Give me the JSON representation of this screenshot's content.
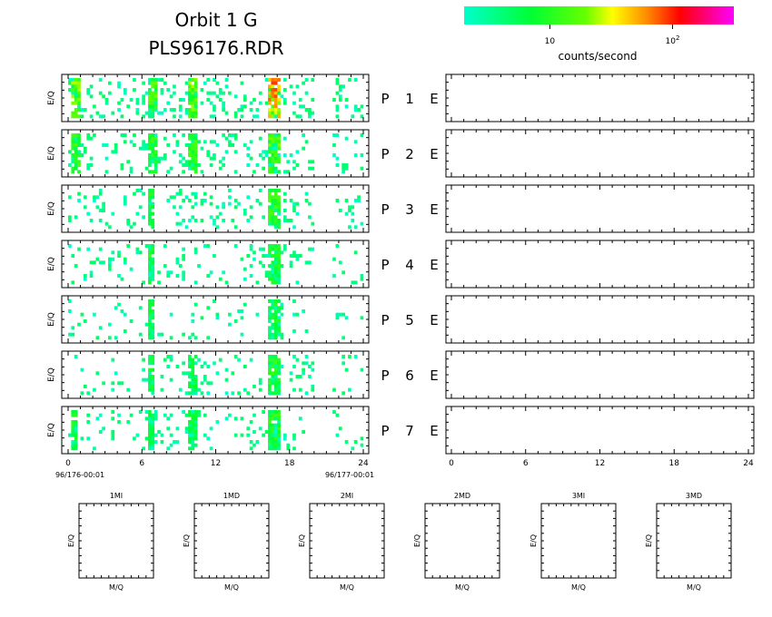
{
  "header": {
    "title": "Orbit 1 G",
    "subtitle": "PLS96176.RDR"
  },
  "colorbar": {
    "label": "counts/second",
    "ticks": [
      {
        "text": "10",
        "value": 10
      },
      {
        "text": "10",
        "sup": "2",
        "value": 100
      }
    ],
    "log_min": 0.301,
    "log_max": 2.5,
    "stops": [
      {
        "pos": 0.0,
        "color": "#00ffcc"
      },
      {
        "pos": 0.25,
        "color": "#00ff33"
      },
      {
        "pos": 0.45,
        "color": "#66ff00"
      },
      {
        "pos": 0.55,
        "color": "#ffff00"
      },
      {
        "pos": 0.68,
        "color": "#ff8800"
      },
      {
        "pos": 0.8,
        "color": "#ff0000"
      },
      {
        "pos": 1.0,
        "color": "#ff00ff"
      }
    ]
  },
  "chart_data": [
    {
      "type": "heatmap",
      "title": "P 1",
      "ylabel": "E/Q",
      "xlim": [
        0,
        24
      ],
      "x_tick_labels": [
        "0",
        "6",
        "12",
        "18",
        "24"
      ],
      "x_start_label": "96/176-00:01",
      "x_end_label": "96/177-00:01",
      "panels": [
        {
          "label": "P",
          "number": "1",
          "bands": [
            {
              "x": [
                0.3,
                1.0
              ],
              "peak": 25
            },
            {
              "x": [
                6.5,
                7.2
              ],
              "peak": 20
            },
            {
              "x": [
                9.8,
                10.6
              ],
              "peak": 30
            },
            {
              "x": [
                16.3,
                17.2
              ],
              "peak": 90
            }
          ],
          "scatter_density": 0.18
        },
        {
          "label": "P",
          "number": "2",
          "bands": [
            {
              "x": [
                0.3,
                0.9
              ],
              "peak": 18
            },
            {
              "x": [
                6.5,
                7.2
              ],
              "peak": 15
            },
            {
              "x": [
                9.8,
                10.6
              ],
              "peak": 15
            },
            {
              "x": [
                16.3,
                17.2
              ],
              "peak": 20
            }
          ],
          "scatter_density": 0.14
        },
        {
          "label": "P",
          "number": "3",
          "bands": [
            {
              "x": [
                6.5,
                7.1
              ],
              "peak": 10
            },
            {
              "x": [
                16.3,
                17.2
              ],
              "peak": 15
            }
          ],
          "scatter_density": 0.14
        },
        {
          "label": "P",
          "number": "4",
          "bands": [
            {
              "x": [
                6.5,
                7.1
              ],
              "peak": 10
            },
            {
              "x": [
                16.3,
                17.2
              ],
              "peak": 12
            }
          ],
          "scatter_density": 0.1
        },
        {
          "label": "P",
          "number": "5",
          "bands": [
            {
              "x": [
                6.6,
                7.1
              ],
              "peak": 8
            },
            {
              "x": [
                16.3,
                17.2
              ],
              "peak": 10
            }
          ],
          "scatter_density": 0.06
        },
        {
          "label": "P",
          "number": "6",
          "bands": [
            {
              "x": [
                6.5,
                7.1
              ],
              "peak": 10
            },
            {
              "x": [
                9.8,
                10.6
              ],
              "peak": 8
            },
            {
              "x": [
                16.3,
                17.2
              ],
              "peak": 12
            }
          ],
          "scatter_density": 0.1
        },
        {
          "label": "P",
          "number": "7",
          "bands": [
            {
              "x": [
                0.3,
                0.8
              ],
              "peak": 10
            },
            {
              "x": [
                6.5,
                7.1
              ],
              "peak": 8
            },
            {
              "x": [
                9.8,
                10.6
              ],
              "peak": 8
            },
            {
              "x": [
                16.3,
                17.2
              ],
              "peak": 12
            }
          ],
          "scatter_density": 0.1
        }
      ]
    },
    {
      "type": "heatmap",
      "title": "E",
      "xlim": [
        0,
        24
      ],
      "x_tick_labels": [
        "0",
        "6",
        "12",
        "18",
        "24"
      ],
      "panels": [
        {
          "label": "E",
          "values": []
        },
        {
          "label": "E",
          "values": []
        },
        {
          "label": "E",
          "values": []
        },
        {
          "label": "E",
          "values": []
        },
        {
          "label": "E",
          "values": []
        },
        {
          "label": "E",
          "values": []
        },
        {
          "label": "E",
          "values": []
        }
      ]
    },
    {
      "type": "heatmap",
      "xlabel": "M/Q",
      "ylabel": "E/Q",
      "panels": [
        {
          "title": "1MI",
          "values": []
        },
        {
          "title": "1MD",
          "values": []
        },
        {
          "title": "2MI",
          "values": []
        },
        {
          "title": "2MD",
          "values": []
        },
        {
          "title": "3MI",
          "values": []
        },
        {
          "title": "3MD",
          "values": []
        }
      ]
    }
  ]
}
